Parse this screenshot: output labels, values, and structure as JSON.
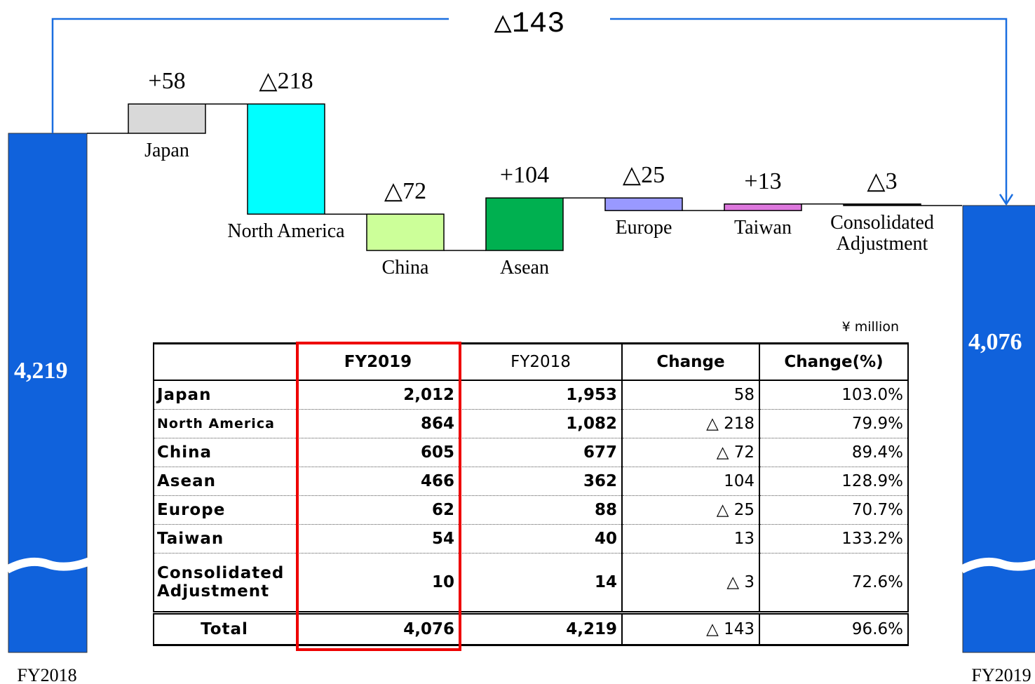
{
  "chart_data": {
    "type": "waterfall",
    "start": {
      "category": "FY2018",
      "value": 4219,
      "value_label": "4,219"
    },
    "end": {
      "category": "FY2019",
      "value": 4076,
      "value_label": "4,076"
    },
    "total_color": "#1062dc",
    "total_change": {
      "value": -143,
      "label": "△143"
    },
    "categories": [
      "Japan",
      "North America",
      "China",
      "Asean",
      "Europe",
      "Taiwan",
      "Consolidated Adjustment"
    ],
    "values": [
      58,
      -218,
      -72,
      104,
      -25,
      13,
      -3
    ],
    "value_labels": [
      "+58",
      "△218",
      "△72",
      "+104",
      "△25",
      "+13",
      "△3"
    ],
    "colors": [
      "#d9d9d9",
      "#00ffff",
      "#ccff99",
      "#00b050",
      "#9999ff",
      "#dd77dd",
      "#000000"
    ]
  },
  "table": {
    "unit": "¥ million",
    "columns": [
      "FY2019",
      "FY2018",
      "Change",
      "Change(%)"
    ],
    "rows": [
      {
        "name": "Japan",
        "cells": [
          "2,012",
          "1,953",
          "58",
          "103.0%"
        ]
      },
      {
        "name": "North America",
        "cells": [
          "864",
          "1,082",
          "△ 218",
          "79.9%"
        ]
      },
      {
        "name": "China",
        "cells": [
          "605",
          "677",
          "△ 72",
          "89.4%"
        ]
      },
      {
        "name": "Asean",
        "cells": [
          "466",
          "362",
          "104",
          "128.9%"
        ]
      },
      {
        "name": "Europe",
        "cells": [
          "62",
          "88",
          "△ 25",
          "70.7%"
        ]
      },
      {
        "name": "Taiwan",
        "cells": [
          "54",
          "40",
          "13",
          "133.2%"
        ]
      },
      {
        "name": "Consolidated Adjustment",
        "cells": [
          "10",
          "14",
          "△ 3",
          "72.6%"
        ]
      }
    ],
    "total": {
      "name": "Total",
      "cells": [
        "4,076",
        "4,219",
        "△ 143",
        "96.6%"
      ]
    }
  }
}
